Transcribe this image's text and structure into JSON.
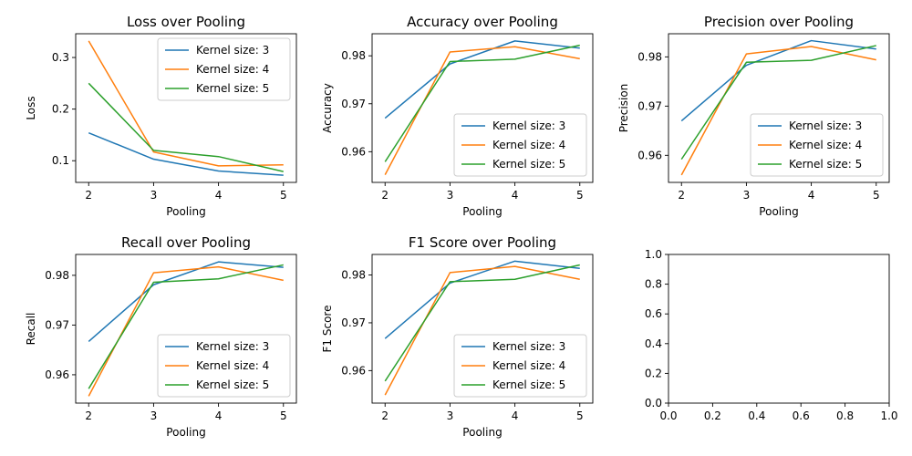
{
  "colors": {
    "Kernel size: 3": "#1f77b4",
    "Kernel size: 4": "#ff7f0e",
    "Kernel size: 5": "#2ca02c"
  },
  "chart_data": [
    {
      "type": "line",
      "title": "Loss over Pooling",
      "xlabel": "Pooling",
      "ylabel": "Loss",
      "x": [
        2,
        3,
        4,
        5
      ],
      "xlim": [
        1.8,
        5.2
      ],
      "ylim": [
        0.058,
        0.346
      ],
      "yticks": [
        0.1,
        0.2,
        0.3
      ],
      "yticklabels": [
        "0.1",
        "0.2",
        "0.3"
      ],
      "legend": "upper right",
      "series": [
        {
          "name": "Kernel size: 3",
          "values": [
            0.154,
            0.103,
            0.08,
            0.072
          ]
        },
        {
          "name": "Kernel size: 4",
          "values": [
            0.332,
            0.117,
            0.09,
            0.092
          ]
        },
        {
          "name": "Kernel size: 5",
          "values": [
            0.25,
            0.12,
            0.108,
            0.079
          ]
        }
      ]
    },
    {
      "type": "line",
      "title": "Accuracy over Pooling",
      "xlabel": "Pooling",
      "ylabel": "Accuracy",
      "x": [
        2,
        3,
        4,
        5
      ],
      "xlim": [
        1.8,
        5.2
      ],
      "ylim": [
        0.9536,
        0.9846
      ],
      "yticks": [
        0.96,
        0.97,
        0.98
      ],
      "yticklabels": [
        "0.96",
        "0.97",
        "0.98"
      ],
      "legend": "lower right",
      "series": [
        {
          "name": "Kernel size: 3",
          "values": [
            0.967,
            0.9783,
            0.9831,
            0.9816
          ]
        },
        {
          "name": "Kernel size: 4",
          "values": [
            0.9552,
            0.9808,
            0.9819,
            0.9794
          ]
        },
        {
          "name": "Kernel size: 5",
          "values": [
            0.9579,
            0.9788,
            0.9793,
            0.9822
          ]
        }
      ]
    },
    {
      "type": "line",
      "title": "Precision over Pooling",
      "xlabel": "Pooling",
      "ylabel": "Precision",
      "x": [
        2,
        3,
        4,
        5
      ],
      "xlim": [
        1.8,
        5.2
      ],
      "ylim": [
        0.9545,
        0.9847
      ],
      "yticks": [
        0.96,
        0.97,
        0.98
      ],
      "yticklabels": [
        "0.96",
        "0.97",
        "0.98"
      ],
      "legend": "lower right",
      "series": [
        {
          "name": "Kernel size: 3",
          "values": [
            0.967,
            0.9783,
            0.9833,
            0.9816
          ]
        },
        {
          "name": "Kernel size: 4",
          "values": [
            0.956,
            0.9806,
            0.9821,
            0.9794
          ]
        },
        {
          "name": "Kernel size: 5",
          "values": [
            0.9592,
            0.9789,
            0.9793,
            0.9823
          ]
        }
      ]
    },
    {
      "type": "line",
      "title": "Recall over Pooling",
      "xlabel": "Pooling",
      "ylabel": "Recall",
      "x": [
        2,
        3,
        4,
        5
      ],
      "xlim": [
        1.8,
        5.2
      ],
      "ylim": [
        0.9543,
        0.9842
      ],
      "yticks": [
        0.96,
        0.97,
        0.98
      ],
      "yticklabels": [
        "0.96",
        "0.97",
        "0.98"
      ],
      "legend": "lower right",
      "series": [
        {
          "name": "Kernel size: 3",
          "values": [
            0.9667,
            0.9781,
            0.9827,
            0.9816
          ]
        },
        {
          "name": "Kernel size: 4",
          "values": [
            0.9557,
            0.9805,
            0.9817,
            0.979
          ]
        },
        {
          "name": "Kernel size: 5",
          "values": [
            0.9572,
            0.9786,
            0.9793,
            0.9821
          ]
        }
      ]
    },
    {
      "type": "line",
      "title": "F1 Score over Pooling",
      "xlabel": "Pooling",
      "ylabel": "F1 Score",
      "x": [
        2,
        3,
        4,
        5
      ],
      "xlim": [
        1.8,
        5.2
      ],
      "ylim": [
        0.9532,
        0.9843
      ],
      "yticks": [
        0.96,
        0.97,
        0.98
      ],
      "yticklabels": [
        "0.96",
        "0.97",
        "0.98"
      ],
      "legend": "lower right",
      "series": [
        {
          "name": "Kernel size: 3",
          "values": [
            0.9667,
            0.9783,
            0.9829,
            0.9814
          ]
        },
        {
          "name": "Kernel size: 4",
          "values": [
            0.9549,
            0.9805,
            0.9818,
            0.9791
          ]
        },
        {
          "name": "Kernel size: 5",
          "values": [
            0.9578,
            0.9786,
            0.9791,
            0.9821
          ]
        }
      ]
    },
    {
      "type": "line",
      "title": "",
      "xlabel": "",
      "ylabel": "",
      "xlim": [
        0,
        1
      ],
      "ylim": [
        0,
        1
      ],
      "xticks": [
        0,
        0.2,
        0.4,
        0.6,
        0.8,
        1.0
      ],
      "xticklabels": [
        "0.0",
        "0.2",
        "0.4",
        "0.6",
        "0.8",
        "1.0"
      ],
      "yticks": [
        0,
        0.2,
        0.4,
        0.6,
        0.8,
        1.0
      ],
      "yticklabels": [
        "0.0",
        "0.2",
        "0.4",
        "0.6",
        "0.8",
        "1.0"
      ],
      "series": []
    }
  ]
}
